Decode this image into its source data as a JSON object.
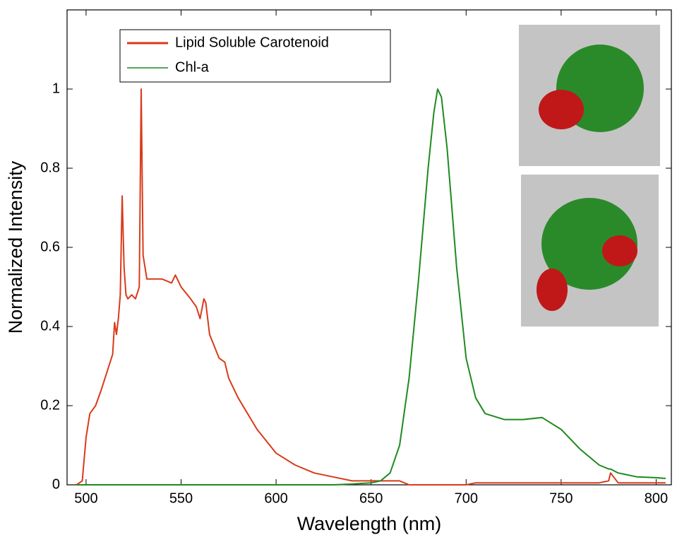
{
  "chart_data": {
    "type": "line",
    "xlabel": "Wavelength (nm)",
    "ylabel": "Normalized Intensity",
    "x": [
      495,
      498,
      500,
      502,
      505,
      508,
      510,
      512,
      514,
      515,
      516,
      517,
      518,
      519,
      520,
      521,
      522,
      524,
      526,
      528,
      529,
      530,
      532,
      535,
      540,
      545,
      547,
      550,
      555,
      558,
      560,
      562,
      563,
      565,
      570,
      573,
      575,
      580,
      585,
      590,
      595,
      600,
      610,
      620,
      630,
      640,
      650,
      655,
      660,
      665,
      670,
      675,
      680,
      683,
      685,
      687,
      690,
      695,
      700,
      705,
      710,
      720,
      730,
      740,
      750,
      760,
      770,
      775,
      776,
      780,
      790,
      800,
      805
    ],
    "series": [
      {
        "name": "Lipid Soluble Carotenoid",
        "color": "#d93a1a",
        "values": [
          0,
          0.01,
          0.12,
          0.18,
          0.2,
          0.24,
          0.27,
          0.3,
          0.33,
          0.41,
          0.38,
          0.42,
          0.48,
          0.73,
          0.55,
          0.48,
          0.47,
          0.48,
          0.47,
          0.5,
          1.0,
          0.58,
          0.52,
          0.52,
          0.52,
          0.51,
          0.53,
          0.5,
          0.47,
          0.45,
          0.42,
          0.47,
          0.46,
          0.38,
          0.32,
          0.31,
          0.27,
          0.22,
          0.18,
          0.14,
          0.11,
          0.08,
          0.05,
          0.03,
          0.02,
          0.01,
          0.01,
          0.01,
          0.01,
          0.01,
          0,
          0,
          0,
          0,
          0,
          0,
          0,
          0,
          0,
          0.005,
          0.005,
          0.005,
          0.005,
          0.005,
          0.005,
          0.005,
          0.005,
          0.01,
          0.03,
          0.005,
          0.005,
          0.005,
          0.005
        ]
      },
      {
        "name": "Chl-a",
        "color": "#1f8a1f",
        "values": [
          0,
          0,
          0,
          0,
          0,
          0,
          0,
          0,
          0,
          0,
          0,
          0,
          0,
          0,
          0,
          0,
          0,
          0,
          0,
          0,
          0,
          0,
          0,
          0,
          0,
          0,
          0,
          0,
          0,
          0,
          0,
          0,
          0,
          0,
          0,
          0,
          0,
          0,
          0,
          0,
          0,
          0,
          0,
          0,
          0,
          0.002,
          0.005,
          0.01,
          0.03,
          0.1,
          0.27,
          0.52,
          0.8,
          0.94,
          1.0,
          0.98,
          0.85,
          0.55,
          0.32,
          0.22,
          0.18,
          0.165,
          0.165,
          0.17,
          0.14,
          0.09,
          0.05,
          0.04,
          0.04,
          0.03,
          0.02,
          0.018,
          0.016
        ]
      }
    ],
    "xlim": [
      490,
      808
    ],
    "ylim": [
      0,
      1.2
    ],
    "xticks": [
      500,
      550,
      600,
      650,
      700,
      750,
      800
    ],
    "yticks": [
      0,
      0.2,
      0.4,
      0.6,
      0.8,
      1
    ],
    "legend": "upper-left"
  }
}
